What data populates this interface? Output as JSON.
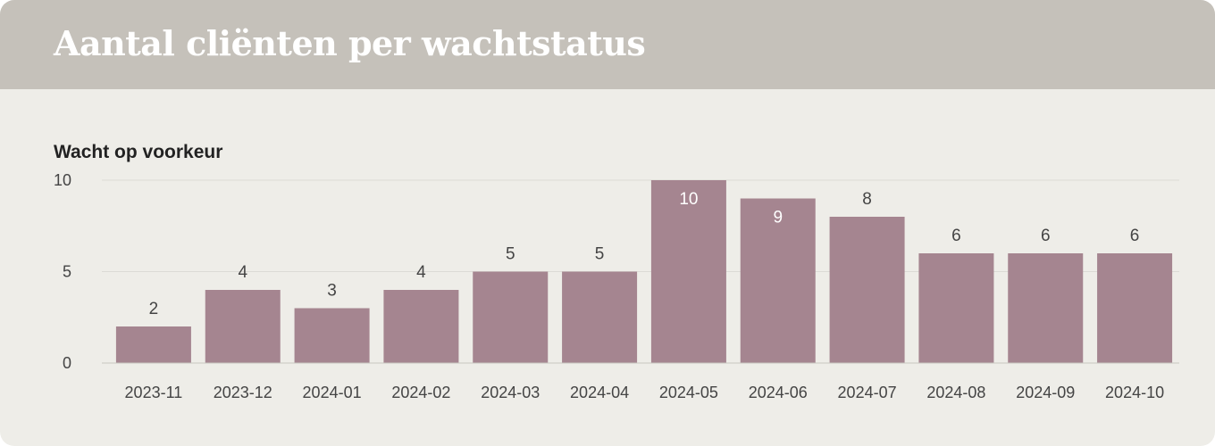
{
  "header": {
    "title": "Aantal cliënten per wachtstatus"
  },
  "chart_data": {
    "type": "bar",
    "subtitle": "Wacht op voorkeur",
    "categories": [
      "2023-11",
      "2023-12",
      "2024-01",
      "2024-02",
      "2024-03",
      "2024-04",
      "2024-05",
      "2024-06",
      "2024-07",
      "2024-08",
      "2024-09",
      "2024-10"
    ],
    "series": [
      {
        "values": [
          2,
          4,
          3,
          4,
          5,
          5,
          10,
          9,
          8,
          6,
          6,
          6
        ]
      }
    ],
    "yticks": [
      0,
      5,
      10
    ],
    "ylim": [
      0,
      10
    ],
    "grid": true,
    "legend": "none",
    "colors": {
      "bar": "#a58590",
      "grid": "#dcdad5",
      "axis": "#c8c6c1",
      "label_outside": "#444444",
      "label_inside": "#ffffff"
    }
  }
}
